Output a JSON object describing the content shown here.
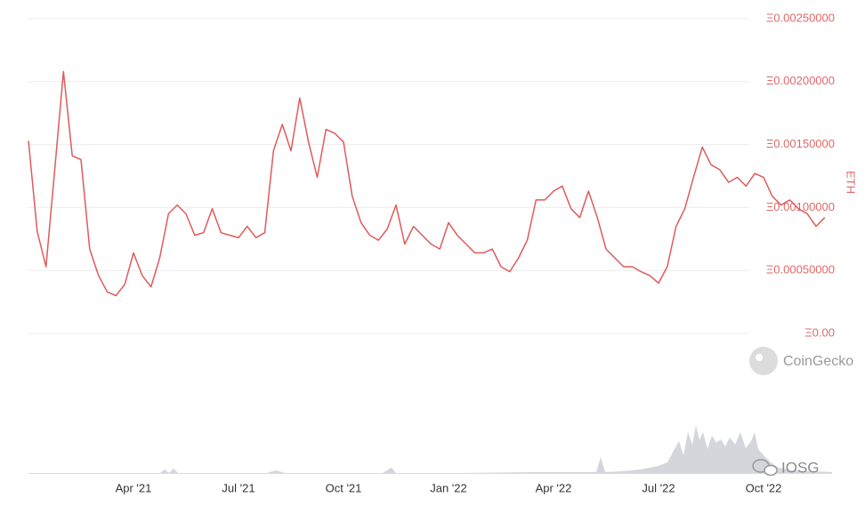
{
  "chart_data": {
    "type": "line",
    "ylabel": "ETH",
    "yaxis_side": "right",
    "color": "#e05a5a",
    "grid": true,
    "watermarks": [
      "CoinGecko",
      "IOSG"
    ],
    "categories": [
      null,
      null,
      null,
      null,
      null,
      null,
      null,
      null,
      null,
      null,
      null,
      null,
      "Apr '21",
      null,
      null,
      null,
      null,
      null,
      null,
      null,
      null,
      null,
      null,
      null,
      "Jul '21",
      null,
      null,
      null,
      null,
      null,
      null,
      null,
      null,
      null,
      null,
      null,
      "Oct '21",
      null,
      null,
      null,
      null,
      null,
      null,
      null,
      null,
      null,
      null,
      null,
      "Jan '22",
      null,
      null,
      null,
      null,
      null,
      null,
      null,
      null,
      null,
      null,
      null,
      "Apr '22",
      null,
      null,
      null,
      null,
      null,
      null,
      null,
      null,
      null,
      null,
      null,
      "Jul '22",
      null,
      null,
      null,
      null,
      null,
      null,
      null,
      null,
      null,
      null,
      null,
      "Oct '22",
      null,
      null,
      null,
      null,
      null,
      null,
      null
    ],
    "values": [
      0.00153,
      0.00081,
      0.00053,
      0.0013,
      0.00208,
      0.00141,
      0.00138,
      0.00067,
      0.00046,
      0.00033,
      0.0003,
      0.00039,
      0.00064,
      0.00046,
      0.00037,
      0.0006,
      0.00095,
      0.00102,
      0.00095,
      0.00078,
      0.0008,
      0.00099,
      0.0008,
      0.00078,
      0.00076,
      0.00085,
      0.00076,
      0.0008,
      0.00145,
      0.00166,
      0.00145,
      0.00187,
      0.00152,
      0.00124,
      0.00162,
      0.00159,
      0.00152,
      0.00109,
      0.00088,
      0.00078,
      0.00074,
      0.00083,
      0.00102,
      0.00071,
      0.00085,
      0.00078,
      0.00071,
      0.00067,
      0.00088,
      0.00078,
      0.00071,
      0.00064,
      0.00064,
      0.00067,
      0.00053,
      0.00049,
      0.0006,
      0.00074,
      0.00106,
      0.00106,
      0.00113,
      0.00117,
      0.00099,
      0.00092,
      0.00113,
      0.00092,
      0.00067,
      0.0006,
      0.00053,
      0.00053,
      0.00049,
      0.00046,
      0.0004,
      0.00053,
      0.00085,
      0.00099,
      0.00124,
      0.00148,
      0.00134,
      0.0013,
      0.0012,
      0.00124,
      0.00117,
      0.00127,
      0.00124,
      0.00109,
      0.00102,
      0.00106,
      0.00099,
      0.00095,
      0.00085,
      0.00092
    ],
    "ylim": [
      0,
      0.0025
    ],
    "yticks": [
      {
        "value": 0,
        "label": "Ξ0.00"
      },
      {
        "value": 0.0005,
        "label": "Ξ0.00050000"
      },
      {
        "value": 0.001,
        "label": "Ξ0.00100000"
      },
      {
        "value": 0.0015,
        "label": "Ξ0.00150000"
      },
      {
        "value": 0.002,
        "label": "Ξ0.00200000"
      },
      {
        "value": 0.0025,
        "label": "Ξ0.00250000"
      }
    ]
  }
}
